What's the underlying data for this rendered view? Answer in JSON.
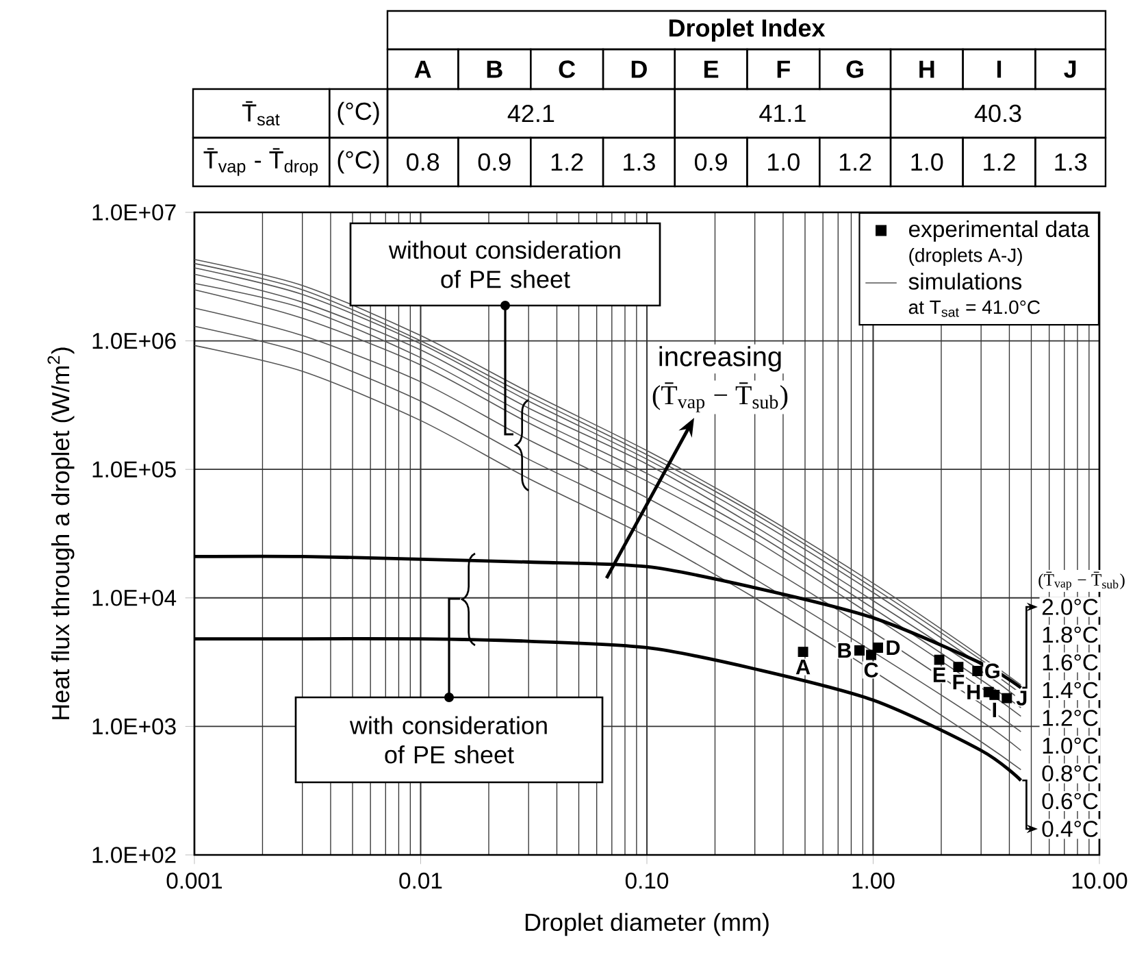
{
  "chart_data": {
    "type": "line",
    "xlabel": "Droplet diameter (mm)",
    "ylabel": "Heat flux through a droplet (W/m$^{2}$)",
    "log": "xy",
    "grid": true,
    "legend": "top right",
    "xlim": [
      0.001,
      10
    ],
    "ylim": [
      100,
      10000000
    ],
    "xticks": [
      0.001,
      0.01,
      {
        "value": 0.1,
        "label": "0.10"
      },
      {
        "value": 1,
        "label": "1.00"
      },
      {
        "value": 10,
        "label": "10.00"
      }
    ],
    "yticks": [
      {
        "value": 100,
        "label": "1.0E+02"
      },
      {
        "value": 1000,
        "label": "1.0E+03"
      },
      {
        "value": 10000,
        "label": "1.0E+04"
      },
      {
        "value": 100000,
        "label": "1.0E+05"
      },
      {
        "value": 1000000,
        "label": "1.0E+06"
      },
      {
        "value": 10000000,
        "label": "1.0E+07"
      }
    ],
    "x": [
      0.001,
      0.003,
      0.01,
      0.03,
      0.1,
      0.3,
      1,
      3,
      4.5
    ],
    "series": [
      {
        "type": "scatter",
        "name": "experimental data",
        "color": "#000000",
        "marker": "square",
        "x": [
          0.49,
          0.87,
          0.98,
          1.05,
          1.96,
          2.38,
          2.89,
          3.24,
          3.44,
          3.9
        ],
        "values": [
          3800,
          3900,
          3600,
          4100,
          3300,
          2900,
          2700,
          1850,
          1760,
          1660
        ],
        "value_labels": [
          "A",
          "B",
          "C",
          "D",
          "E",
          "F",
          "G",
          "H",
          "I",
          "J"
        ]
      },
      {
        "name": "simulations",
        "color": "#555555",
        "values": [
          4300000,
          2700000,
          1100000,
          400000,
          140000,
          48000,
          13000,
          3500,
          2100
        ]
      },
      {
        "color": "#555555",
        "values": [
          4000000,
          2500000,
          1000000,
          370000,
          130000,
          45000,
          12000,
          3300,
          2000
        ]
      },
      {
        "color": "#555555",
        "values": [
          3700000,
          2300000,
          950000,
          340000,
          120000,
          41000,
          11000,
          3000,
          1800
        ]
      },
      {
        "color": "#555555",
        "values": [
          3300000,
          2000000,
          850000,
          300000,
          110000,
          36000,
          9500,
          2700,
          1600
        ]
      },
      {
        "color": "#555555",
        "values": [
          2800000,
          1800000,
          740000,
          260000,
          93000,
          32000,
          8300,
          2300,
          1400
        ]
      },
      {
        "color": "#555555",
        "values": [
          2500000,
          1500000,
          650000,
          230000,
          81000,
          28000,
          7200,
          2000,
          1200
        ]
      },
      {
        "color": "#555555",
        "values": [
          1800000,
          1100000,
          480000,
          170000,
          60000,
          20000,
          5400,
          1500,
          910
        ]
      },
      {
        "color": "#555555",
        "values": [
          1300000,
          810000,
          340000,
          120000,
          43000,
          14000,
          3800,
          1100,
          650
        ]
      },
      {
        "color": "#555555",
        "values": [
          920000,
          580000,
          240000,
          85000,
          30000,
          10000,
          2700,
          760,
          460
        ]
      },
      {
        "color": "#000000",
        "values": [
          21000,
          21000,
          20000,
          19000,
          17500,
          12000,
          7000,
          3100,
          2000
        ]
      },
      {
        "color": "#000000",
        "values": [
          4800,
          4800,
          4800,
          4600,
          4100,
          2800,
          1600,
          650,
          380
        ]
      }
    ],
    "annotations": [
      "Droplet Index",
      "A",
      "B",
      "C",
      "D",
      "E",
      "F",
      "G",
      "H",
      "I",
      "J",
      "T̄$_{sat}$",
      "(°C)",
      "42.1",
      "41.1",
      "40.3",
      "T̄$_{vap}$ - T̄$_{drop}$",
      "(°C)",
      "0.8",
      "0.9",
      "1.2",
      "1.3",
      "0.9",
      "1.0",
      "1.2",
      "1.0",
      "1.2",
      "1.3",
      "without consideration of PE sheet",
      "with consideration of PE sheet",
      "increasing",
      "(T̄$_{vap}$ − T̄$_{sub}$)",
      "(T̄$_{vap}$ − T̄$_{sub}$)",
      {
        "text": "2.0°C",
        "x": 4.5,
        "y": 2000
      },
      "1.8°C",
      "1.6°C",
      "1.4°C",
      "1.2°C",
      "1.0°C",
      "0.8°C",
      "0.6°C",
      {
        "text": "0.4°C",
        "x": 4.5,
        "y": 380
      },
      "(droplets A-J)",
      "at T$_{sat}$ = 41.0°C"
    ]
  }
}
